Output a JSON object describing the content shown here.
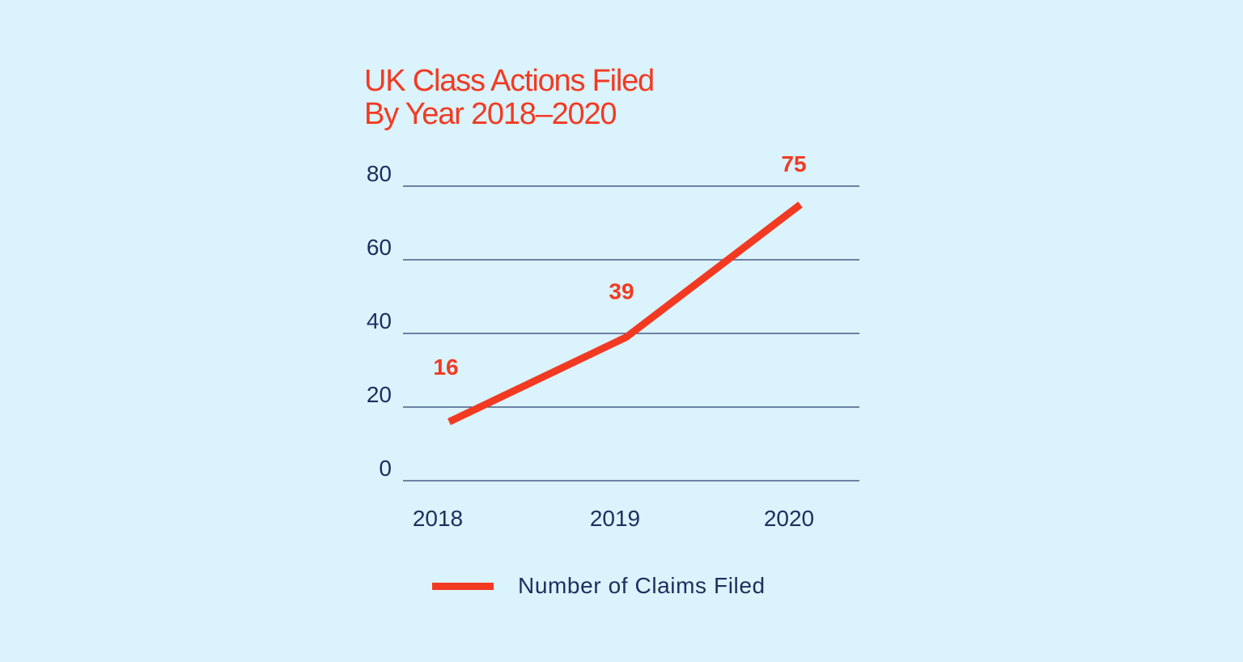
{
  "chart_data": {
    "type": "line",
    "title_lines": [
      "UK Class Actions Filed",
      "By Year 2018–2020"
    ],
    "categories": [
      "2018",
      "2019",
      "2020"
    ],
    "series": [
      {
        "name": "Number of Claims Filed",
        "values": [
          16,
          39,
          75
        ],
        "color": "#f23a22"
      }
    ],
    "data_labels": [
      "16",
      "39",
      "75"
    ],
    "yticks": [
      0,
      20,
      40,
      60,
      80
    ],
    "ylim": [
      0,
      80
    ],
    "grid": true,
    "legend_position": "bottom",
    "colors": {
      "background": "#dbf3fc",
      "line": "#f23a22",
      "text": "#1c2f5e",
      "grid": "#2b3f6e"
    }
  }
}
